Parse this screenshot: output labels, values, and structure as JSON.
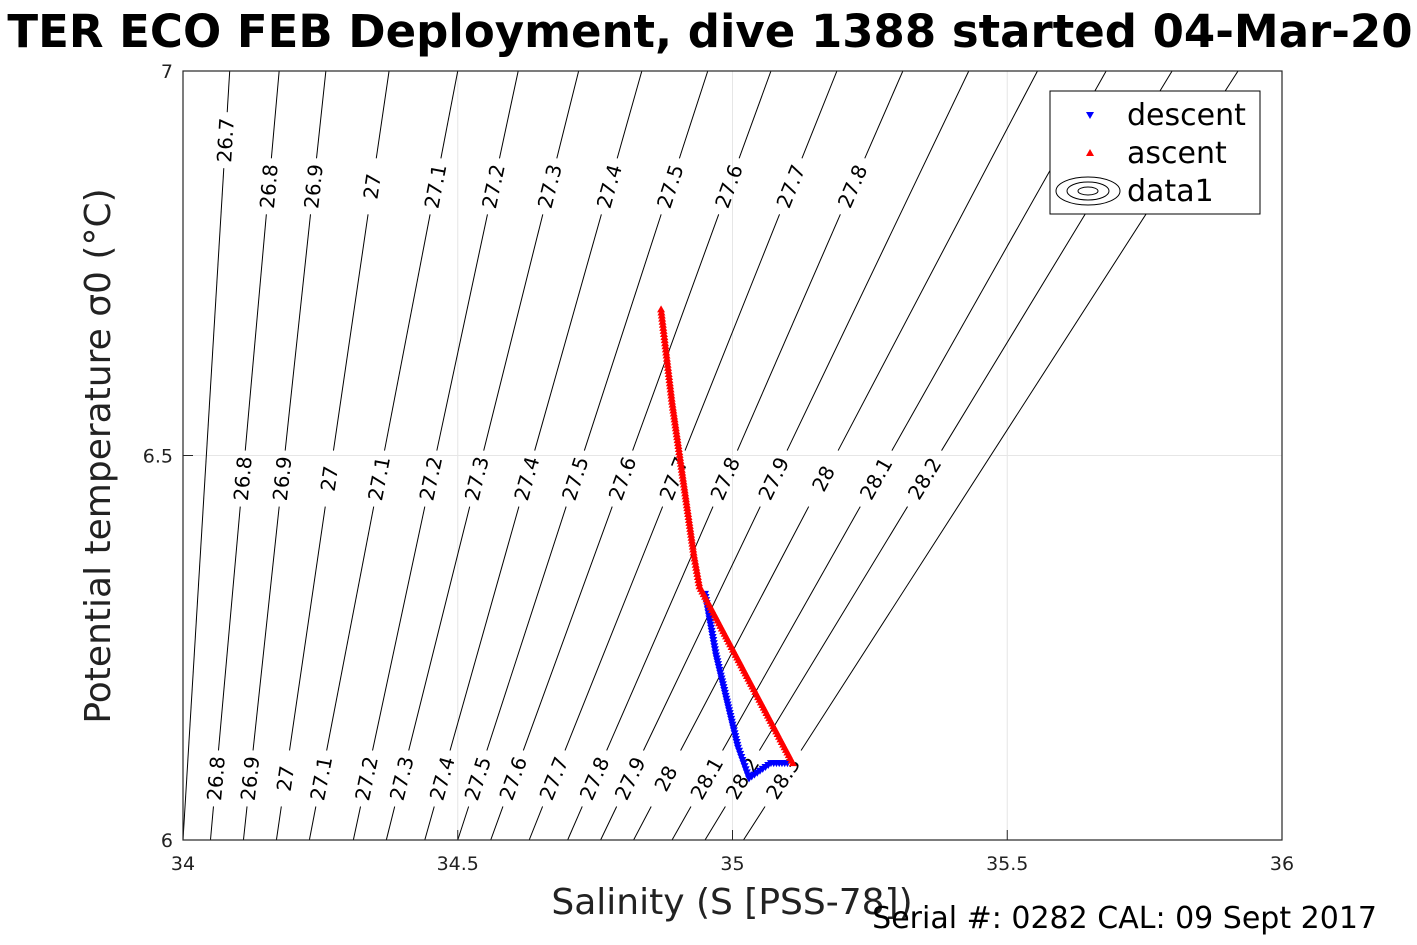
{
  "chart_data": {
    "type": "scatter",
    "title": "TER ECO FEB Deployment, dive 1388 started 04-Mar-20",
    "xlabel": "Salinity (S [PSS-78])",
    "ylabel": "Potential temperature σ0 (°C)",
    "xlim": [
      34,
      36
    ],
    "ylim": [
      6,
      7
    ],
    "xticks": [
      "34",
      "34.5",
      "35",
      "35.5",
      "36"
    ],
    "yticks": [
      "6",
      "6.5",
      "7"
    ],
    "grid": true,
    "legend_position": "top-right",
    "series": [
      {
        "name": "descent",
        "color": "#0000ff",
        "marker": "triangle-down",
        "x": [
          34.95,
          34.96,
          34.97,
          34.98,
          34.99,
          35.0,
          35.01,
          35.02,
          35.03,
          35.05,
          35.07,
          35.09,
          35.1
        ],
        "y": [
          6.32,
          6.28,
          6.24,
          6.21,
          6.18,
          6.15,
          6.12,
          6.1,
          6.08,
          6.09,
          6.1,
          6.1,
          6.1
        ]
      },
      {
        "name": "ascent",
        "color": "#ff0000",
        "marker": "triangle-up",
        "x": [
          34.87,
          34.88,
          34.89,
          34.9,
          34.91,
          34.92,
          34.93,
          34.94,
          35.11
        ],
        "y": [
          6.69,
          6.63,
          6.57,
          6.52,
          6.47,
          6.42,
          6.37,
          6.33,
          6.1
        ]
      }
    ],
    "legend_extra": "data1",
    "density_contours": {
      "color": "#000000",
      "lines": [
        {
          "top_x": 34.085,
          "bottom_x": 34.0,
          "labels": [
            {
              "text": "26.7",
              "y": 6.91
            }
          ]
        },
        {
          "top_x": 34.175,
          "bottom_x": 34.05,
          "labels": [
            {
              "text": "26.8",
              "y": 6.85
            },
            {
              "text": "26.8",
              "y": 6.47
            },
            {
              "text": "26.8",
              "y": 6.08
            }
          ]
        },
        {
          "top_x": 34.26,
          "bottom_x": 34.11,
          "labels": [
            {
              "text": "26.9",
              "y": 6.85
            },
            {
              "text": "26.9",
              "y": 6.47
            },
            {
              "text": "26.9",
              "y": 6.08
            }
          ]
        },
        {
          "top_x": 34.375,
          "bottom_x": 34.17,
          "labels": [
            {
              "text": "27",
              "y": 6.85
            },
            {
              "text": "27",
              "y": 6.47
            },
            {
              "text": "27",
              "y": 6.08
            }
          ]
        },
        {
          "top_x": 34.5,
          "bottom_x": 34.23,
          "labels": [
            {
              "text": "27.1",
              "y": 6.85
            },
            {
              "text": "27.1",
              "y": 6.47
            },
            {
              "text": "27.1",
              "y": 6.08
            }
          ]
        },
        {
          "top_x": 34.61,
          "bottom_x": 34.31,
          "labels": [
            {
              "text": "27.2",
              "y": 6.85
            },
            {
              "text": "27.2",
              "y": 6.47
            },
            {
              "text": "27.2",
              "y": 6.08
            }
          ]
        },
        {
          "top_x": 34.72,
          "bottom_x": 34.37,
          "labels": [
            {
              "text": "27.3",
              "y": 6.85
            },
            {
              "text": "27.3",
              "y": 6.47
            },
            {
              "text": "27.3",
              "y": 6.08
            }
          ]
        },
        {
          "top_x": 34.835,
          "bottom_x": 34.44,
          "labels": [
            {
              "text": "27.4",
              "y": 6.85
            },
            {
              "text": "27.4",
              "y": 6.47
            },
            {
              "text": "27.4",
              "y": 6.08
            }
          ]
        },
        {
          "top_x": 34.955,
          "bottom_x": 34.5,
          "labels": [
            {
              "text": "27.5",
              "y": 6.85
            },
            {
              "text": "27.5",
              "y": 6.47
            },
            {
              "text": "27.5",
              "y": 6.08
            }
          ]
        },
        {
          "top_x": 35.07,
          "bottom_x": 34.56,
          "labels": [
            {
              "text": "27.6",
              "y": 6.85
            },
            {
              "text": "27.6",
              "y": 6.47
            },
            {
              "text": "27.6",
              "y": 6.08
            }
          ]
        },
        {
          "top_x": 35.19,
          "bottom_x": 34.63,
          "labels": [
            {
              "text": "27.7",
              "y": 6.85
            },
            {
              "text": "27.7",
              "y": 6.47
            },
            {
              "text": "27.7",
              "y": 6.08
            }
          ]
        },
        {
          "top_x": 35.31,
          "bottom_x": 34.7,
          "labels": [
            {
              "text": "27.8",
              "y": 6.85
            },
            {
              "text": "27.8",
              "y": 6.47
            },
            {
              "text": "27.8",
              "y": 6.08
            }
          ]
        },
        {
          "top_x": 35.43,
          "bottom_x": 34.76,
          "labels": [
            {
              "text": "27.9",
              "y": 6.47
            },
            {
              "text": "27.9",
              "y": 6.08
            }
          ]
        },
        {
          "top_x": 35.555,
          "bottom_x": 34.82,
          "labels": [
            {
              "text": "28",
              "y": 6.47
            },
            {
              "text": "28",
              "y": 6.08
            }
          ]
        },
        {
          "top_x": 35.68,
          "bottom_x": 34.89,
          "labels": [
            {
              "text": "28.1",
              "y": 6.47
            },
            {
              "text": "28.1",
              "y": 6.08
            }
          ]
        },
        {
          "top_x": 35.8,
          "bottom_x": 34.95,
          "labels": [
            {
              "text": "28.2",
              "y": 6.47
            },
            {
              "text": "28.2",
              "y": 6.08
            }
          ]
        },
        {
          "top_x": 35.92,
          "bottom_x": 35.02,
          "labels": [
            {
              "text": "28.3",
              "y": 6.08
            }
          ]
        }
      ]
    }
  },
  "footer": "Serial #: 0282  CAL: 09 Sept 2017"
}
